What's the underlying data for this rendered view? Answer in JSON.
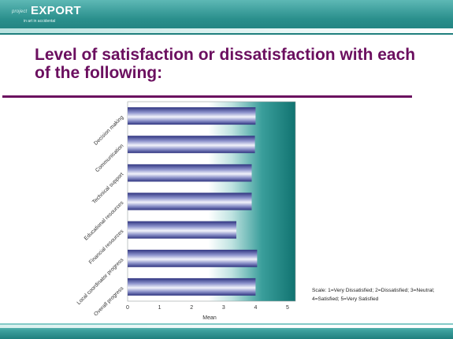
{
  "header": {
    "logo_small": "project",
    "logo_big": "EXPORT",
    "logo_tagline": "in art in accidental"
  },
  "title": "Level of satisfaction or dissatisfaction with each of the following:",
  "scale_note": "Scale: 1=Very Dissatisfied; 2=Dissatisfied; 3=Neutral; 4=Satisfied; 5=Very Satisfied",
  "colors": {
    "title": "#6b0f5f",
    "teal_dark": "#1f7f7d",
    "bar_dark": "#3a3f88",
    "bar_light": "#eef0fa"
  },
  "chart_data": {
    "type": "bar",
    "orientation": "horizontal",
    "categories": [
      "Decision making",
      "Communication",
      "Technical support",
      "Educational resources",
      "Financial resources",
      "Local coordinator progress",
      "Overall progress"
    ],
    "values": [
      4.0,
      3.98,
      3.88,
      3.88,
      3.4,
      4.05,
      4.0
    ],
    "xlabel": "Mean",
    "ylabel": "",
    "xlim": [
      0,
      5
    ],
    "xticks": [
      "0",
      "1",
      "2",
      "3",
      "4",
      "5"
    ],
    "grid": false,
    "legend": "none"
  }
}
